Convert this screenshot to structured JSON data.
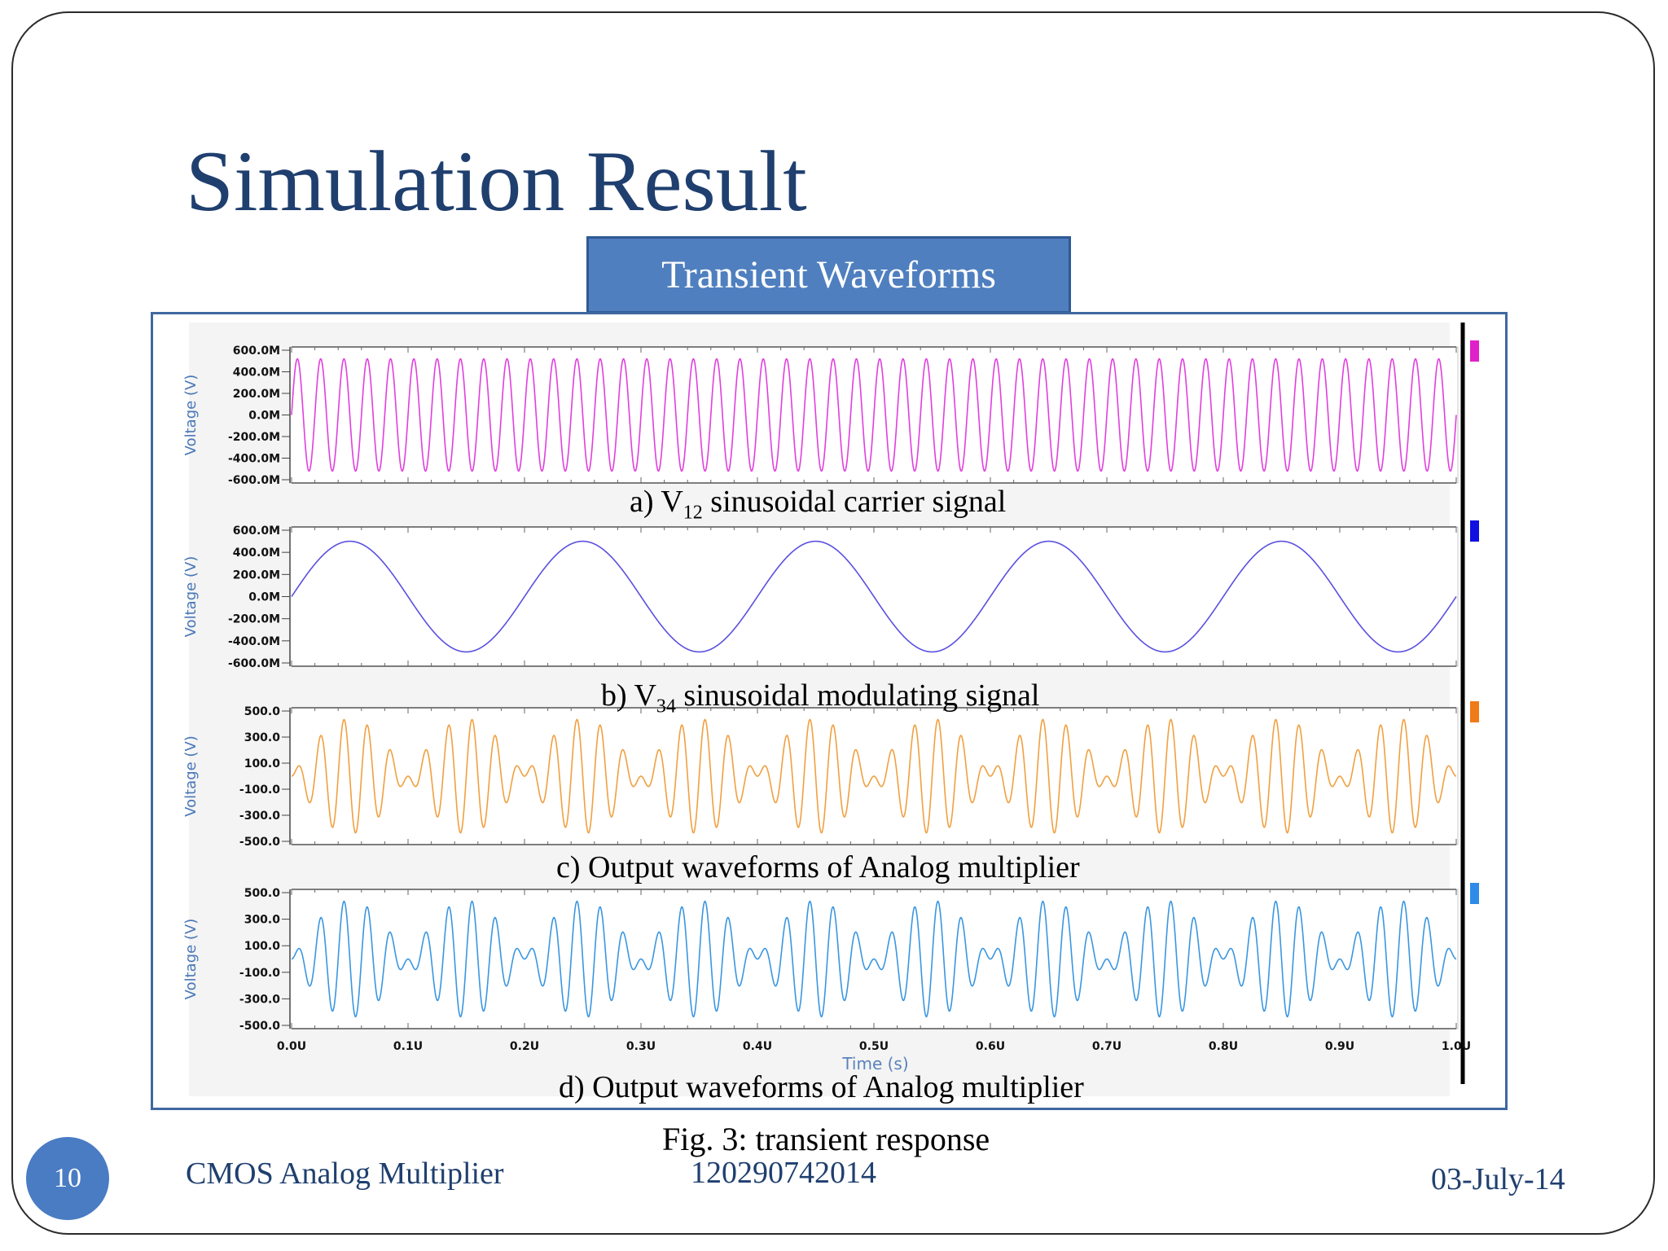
{
  "slide": {
    "title": "Simulation Result",
    "subtitle": "Transient Waveforms",
    "figure_caption": "Fig. 3: transient response",
    "page_number": "10",
    "footer_left": "CMOS Analog Multiplier",
    "footer_center": "120290742014",
    "footer_right": "03-July-14"
  },
  "captions": {
    "a_pre": "a) V",
    "a_sub": "12",
    "a_post": " sinusoidal carrier signal",
    "b_pre": "b) V",
    "b_sub": "34",
    "b_post": " sinusoidal modulating  signal",
    "c": "c) Output waveforms  of Analog multiplier",
    "d": "d) Output waveforms  of Analog multiplier"
  },
  "chart_data": [
    {
      "type": "line",
      "ylabel": "Voltage (V)",
      "xlabel": "",
      "xlim": [
        0,
        1.0
      ],
      "ylim": [
        -600,
        600
      ],
      "yticks": [
        "600.0M",
        "400.0M",
        "200.0M",
        "0.0M",
        "-200.0M",
        "-400.0M",
        "-600.0M"
      ],
      "ytick_values": [
        600,
        400,
        200,
        0,
        -200,
        -400,
        -600
      ],
      "color": "#e13fdd",
      "marker_color": "#e020c8",
      "series": [
        {
          "function": "sine",
          "amplitude": 520,
          "frequency_cycles": 50,
          "phase": 0
        }
      ]
    },
    {
      "type": "line",
      "ylabel": "Voltage (V)",
      "xlabel": "",
      "xlim": [
        0,
        1.0
      ],
      "ylim": [
        -600,
        600
      ],
      "yticks": [
        "600.0M",
        "400.0M",
        "200.0M",
        "0.0M",
        "-200.0M",
        "-400.0M",
        "-600.0M"
      ],
      "ytick_values": [
        600,
        400,
        200,
        0,
        -200,
        -400,
        -600
      ],
      "color": "#5a50e0",
      "marker_color": "#1010e0",
      "series": [
        {
          "function": "sine",
          "amplitude": 500,
          "frequency_cycles": 5,
          "phase": 0
        }
      ]
    },
    {
      "type": "line",
      "ylabel": "Voltage (V)",
      "xlabel": "",
      "xlim": [
        0,
        1.0
      ],
      "ylim": [
        -500,
        500
      ],
      "yticks": [
        "500.0",
        "300.0",
        "100.0",
        "-100.0",
        "-300.0",
        "-500.0"
      ],
      "ytick_values": [
        500,
        300,
        100,
        -100,
        -300,
        -500
      ],
      "color": "#f0a040",
      "marker_color": "#f07a18",
      "series": [
        {
          "function": "product",
          "amplitude": 440,
          "carrier_cycles": 50,
          "modulating_cycles": 5
        }
      ]
    },
    {
      "type": "line",
      "ylabel": "Voltage (V)",
      "xlabel": "Time (s)",
      "xlim": [
        0,
        1.0
      ],
      "ylim": [
        -500,
        500
      ],
      "yticks": [
        "500.0",
        "300.0",
        "100.0",
        "-100.0",
        "-300.0",
        "-500.0"
      ],
      "ytick_values": [
        500,
        300,
        100,
        -100,
        -300,
        -500
      ],
      "xticks": [
        "0.0U",
        "0.1U",
        "0.2U",
        "0.3U",
        "0.4U",
        "0.5U",
        "0.6U",
        "0.7U",
        "0.8U",
        "0.9U",
        "1.0U"
      ],
      "xtick_values": [
        0,
        0.1,
        0.2,
        0.3,
        0.4,
        0.5,
        0.6,
        0.7,
        0.8,
        0.9,
        1.0
      ],
      "color": "#3a96e0",
      "marker_color": "#2e8ce8",
      "series": [
        {
          "function": "product",
          "amplitude": 440,
          "carrier_cycles": 50,
          "modulating_cycles": 5
        }
      ]
    }
  ]
}
